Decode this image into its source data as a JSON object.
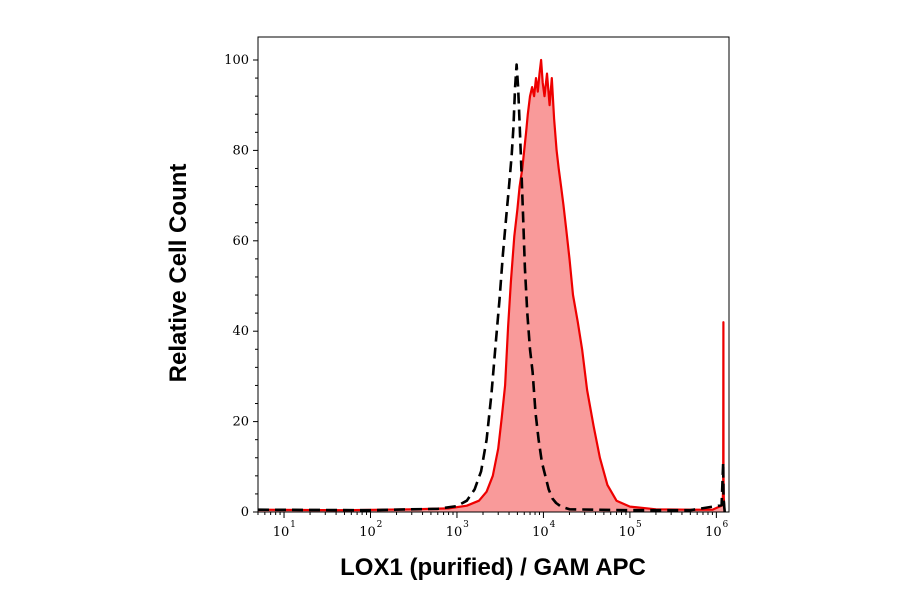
{
  "chart_data": {
    "type": "area",
    "title": "",
    "xlabel": "LOX1 (purified) / GAM APC",
    "ylabel": "Relative Cell Count",
    "x_scale": "log",
    "xlim": [
      5,
      1400000
    ],
    "ylim": [
      0,
      100
    ],
    "x_ticks": [
      {
        "value": 10,
        "base": "10",
        "exp": "1"
      },
      {
        "value": 100,
        "base": "10",
        "exp": "2"
      },
      {
        "value": 1000,
        "base": "10",
        "exp": "3"
      },
      {
        "value": 10000,
        "base": "10",
        "exp": "4"
      },
      {
        "value": 100000,
        "base": "10",
        "exp": "5"
      },
      {
        "value": 1000000,
        "base": "10",
        "exp": "6"
      }
    ],
    "y_ticks": [
      {
        "value": 0,
        "label": "0"
      },
      {
        "value": 20,
        "label": "20"
      },
      {
        "value": 40,
        "label": "40"
      },
      {
        "value": 60,
        "label": "60"
      },
      {
        "value": 80,
        "label": "80"
      },
      {
        "value": 100,
        "label": "100"
      }
    ],
    "grid": false,
    "legend": "none",
    "series": [
      {
        "style": "filled-solid",
        "color": "#ee0000",
        "fill": "#f99a9a",
        "x": [
          5,
          50,
          300,
          800,
          1300,
          1800,
          2200,
          2600,
          3000,
          3300,
          3600,
          3900,
          4200,
          4600,
          5000,
          5300,
          5700,
          6000,
          6300,
          6600,
          7000,
          7400,
          7800,
          8200,
          8600,
          9000,
          9400,
          9800,
          10300,
          11000,
          11800,
          12500,
          13300,
          14200,
          15000,
          16000,
          17000,
          18500,
          20000,
          22000,
          25000,
          28000,
          32000,
          38000,
          45000,
          55000,
          70000,
          100000,
          200000,
          500000,
          900000,
          1180000,
          1200000,
          1205000,
          1210000,
          1220000,
          1250000
        ],
        "y": [
          0.5,
          0.4,
          0.6,
          0.8,
          1.4,
          2.5,
          4.5,
          8,
          14,
          21,
          28,
          41,
          51,
          61,
          67,
          72,
          76,
          80,
          84,
          88,
          92,
          94,
          92,
          96,
          93,
          97,
          100,
          95,
          92,
          97,
          90,
          96,
          87,
          80,
          76,
          72,
          68,
          62,
          56,
          48,
          42,
          36,
          27,
          19,
          12,
          6,
          2.5,
          1.2,
          0.6,
          0.5,
          0.5,
          1.5,
          6,
          42,
          8,
          3,
          0
        ]
      },
      {
        "style": "dashed",
        "color": "#000000",
        "x": [
          5,
          100,
          600,
          1000,
          1300,
          1600,
          1900,
          2200,
          2500,
          2800,
          3100,
          3400,
          3700,
          4000,
          4300,
          4500,
          4700,
          4900,
          5100,
          5300,
          5500,
          5800,
          6100,
          6500,
          7000,
          7500,
          8100,
          8800,
          9600,
          10500,
          11500,
          12700,
          14000,
          16000,
          20000,
          40000,
          100000,
          500000,
          1150000,
          1200000,
          1210000,
          1250000
        ],
        "y": [
          0.5,
          0.4,
          0.7,
          1.3,
          2.5,
          5,
          9,
          16,
          26,
          37,
          47,
          57,
          65,
          72,
          79,
          85,
          94,
          99,
          94,
          86,
          78,
          66,
          54,
          44,
          36,
          31,
          22,
          16,
          11,
          8,
          5,
          3,
          2,
          1.2,
          0.6,
          0.5,
          0.4,
          0.4,
          1.5,
          11,
          3,
          0
        ]
      }
    ]
  }
}
